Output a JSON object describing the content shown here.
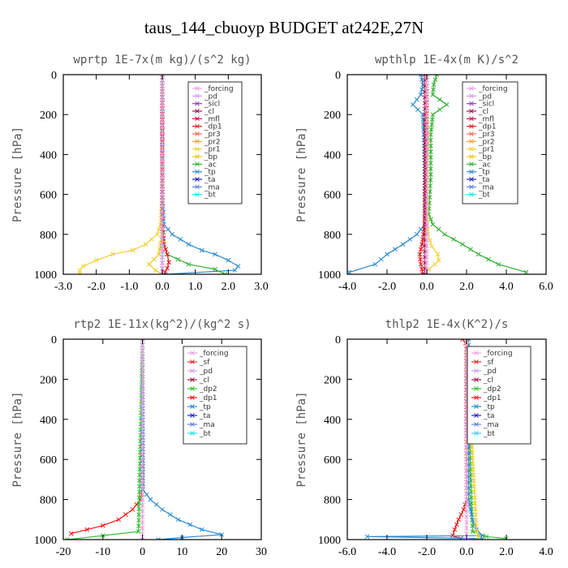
{
  "figure_title": "taus_144_cbuoyp  BUDGET at242E,27N",
  "colors": {
    "_forcing": "#e8a4e0",
    "_pd": "#c8a0e8",
    "_sicl": "#8a40c8",
    "_cl": "#a01850",
    "_mfl": "#c0104a",
    "_dp1": "#e81818",
    "_pr3": "#f07050",
    "_pr2": "#e8a030",
    "_pr1": "#f0d030",
    "_bp": "#e8c818",
    "_ac": "#30b030",
    "_tp": "#2a8ad0",
    "_ta": "#2020d0",
    "_ma": "#6080d8",
    "_bt": "#20e0e8",
    "_sf": "#e03030",
    "_dp2": "#30c030",
    "black": "#000000"
  },
  "chart_data": [
    {
      "type": "line",
      "title": "wprtp  1E-7x(m kg)/(s^2 kg)",
      "ylabel": "Pressure [hPa]",
      "xlim": [
        -3.0,
        3.0
      ],
      "ylim": [
        1000,
        0
      ],
      "xticks": [
        "-3.0",
        "-2.0",
        "-1.0",
        "0.0",
        "1.0",
        "2.0",
        "3.0"
      ],
      "yticks": [
        "0",
        "200",
        "400",
        "600",
        "800",
        "1000"
      ],
      "legend": [
        "_forcing",
        "_pd",
        "_sicl",
        "_cl",
        "_mfl",
        "_dp1",
        "_pr3",
        "_pr2",
        "_pr1",
        "_bp",
        "_ac",
        "_tp",
        "_ta",
        "_ma",
        "_bt"
      ],
      "series": [
        {
          "name": "_pr1",
          "y": [
            0,
            600,
            750,
            800,
            850,
            880,
            900,
            930,
            960,
            980,
            1000
          ],
          "x": [
            0,
            0,
            -0.05,
            -0.15,
            -0.5,
            -0.9,
            -1.5,
            -2.0,
            -2.4,
            -2.5,
            -2.5
          ]
        },
        {
          "name": "_tp",
          "y": [
            0,
            600,
            750,
            800,
            850,
            880,
            900,
            930,
            960,
            980,
            1000
          ],
          "x": [
            0,
            0,
            0.05,
            0.3,
            0.8,
            1.2,
            1.6,
            2.0,
            2.3,
            2.2,
            0.1
          ]
        },
        {
          "name": "_ac",
          "y": [
            0,
            800,
            850,
            900,
            950,
            975,
            1000
          ],
          "x": [
            0,
            0,
            0.05,
            0.15,
            0.8,
            1.6,
            1.9
          ]
        },
        {
          "name": "_dp1",
          "y": [
            0,
            700,
            850,
            900,
            940,
            970,
            990,
            1000
          ],
          "x": [
            0,
            0,
            0.05,
            0.15,
            0.2,
            0.15,
            0.08,
            0.05
          ]
        },
        {
          "name": "_bp",
          "y": [
            0,
            800,
            900,
            950,
            980,
            1000
          ],
          "x": [
            0,
            0,
            -0.1,
            -0.4,
            -0.2,
            0
          ]
        },
        {
          "name": "_ta",
          "y": [
            0,
            1000
          ],
          "x": [
            0,
            0
          ]
        },
        {
          "name": "_forcing",
          "y": [
            0,
            1000
          ],
          "x": [
            0,
            0
          ]
        }
      ]
    },
    {
      "type": "line",
      "title": "wpthlp  1E-4x(m K)/s^2",
      "ylabel": "Pressure [hPa]",
      "xlim": [
        -4.0,
        6.0
      ],
      "ylim": [
        1000,
        0
      ],
      "xticks": [
        "-4.0",
        "-2.0",
        "0.0",
        "2.0",
        "4.0",
        "6.0"
      ],
      "yticks": [
        "0",
        "200",
        "400",
        "600",
        "800",
        "1000"
      ],
      "legend": [
        "_forcing",
        "_pd",
        "_sicl",
        "_cl",
        "_mfl",
        "_dp1",
        "_pr3",
        "_pr2",
        "_pr1",
        "_bp",
        "_ac",
        "_tp",
        "_ta",
        "_ma",
        "_bt"
      ],
      "series": [
        {
          "name": "_ac",
          "y": [
            0,
            50,
            100,
            150,
            200,
            300,
            500,
            700,
            750,
            800,
            850,
            900,
            950,
            990
          ],
          "x": [
            0.5,
            0.35,
            0.3,
            1.0,
            0.3,
            0.2,
            0.2,
            0.1,
            0.3,
            0.9,
            1.8,
            2.6,
            3.6,
            5.0
          ]
        },
        {
          "name": "_tp",
          "y": [
            0,
            50,
            100,
            150,
            200,
            300,
            500,
            750,
            800,
            850,
            900,
            950,
            990
          ],
          "x": [
            -0.3,
            -0.2,
            -0.3,
            -0.7,
            -0.2,
            -0.15,
            -0.1,
            -0.1,
            -0.5,
            -1.2,
            -2.0,
            -2.6,
            -3.9
          ]
        },
        {
          "name": "_pr1",
          "y": [
            0,
            700,
            800,
            860,
            900,
            930,
            950,
            975
          ],
          "x": [
            0,
            0,
            0.05,
            0.25,
            0.55,
            0.6,
            0.4,
            0.1
          ]
        },
        {
          "name": "_dp1",
          "y": [
            0,
            500,
            750,
            850,
            900,
            950,
            1000
          ],
          "x": [
            0,
            -0.05,
            -0.1,
            -0.25,
            -0.35,
            -0.3,
            -0.2
          ]
        },
        {
          "name": "_cl",
          "y": [
            0,
            1000
          ],
          "x": [
            -0.1,
            -0.1
          ]
        },
        {
          "name": "_forcing",
          "y": [
            0,
            1000
          ],
          "x": [
            0,
            0
          ]
        }
      ]
    },
    {
      "type": "line",
      "title": "rtp2  1E-11x(kg^2)/(kg^2 s)",
      "ylabel": "Pressure [hPa]",
      "xlim": [
        -20,
        30
      ],
      "ylim": [
        1000,
        0
      ],
      "xticks": [
        "-20",
        "-10",
        "0",
        "10",
        "20",
        "30"
      ],
      "yticks": [
        "0",
        "200",
        "400",
        "600",
        "800",
        "1000"
      ],
      "legend": [
        "_forcing",
        "_sf",
        "_pd",
        "_cl",
        "_dp2",
        "_dp1",
        "_tp",
        "_ta",
        "_ma",
        "_bt"
      ],
      "series": [
        {
          "name": "_dp1",
          "y": [
            0,
            750,
            800,
            850,
            900,
            930,
            950,
            970
          ],
          "x": [
            0,
            0,
            -0.5,
            -2.5,
            -6,
            -10,
            -14,
            -18
          ]
        },
        {
          "name": "_dp2",
          "y": [
            0,
            960,
            980,
            1000
          ],
          "x": [
            0,
            -1,
            -10,
            -19
          ]
        },
        {
          "name": "_tp",
          "y": [
            0,
            750,
            800,
            850,
            900,
            950,
            975,
            990,
            1000
          ],
          "x": [
            0,
            0.1,
            2,
            5,
            9,
            15,
            20,
            10,
            4
          ]
        },
        {
          "name": "_forcing",
          "y": [
            0,
            1000
          ],
          "x": [
            0,
            0
          ]
        }
      ]
    },
    {
      "type": "line",
      "title": "thlp2  1E-4x(K^2)/s",
      "ylabel": "Pressure [hPa]",
      "xlim": [
        -6.0,
        4.0
      ],
      "ylim": [
        1000,
        0
      ],
      "xticks": [
        "-6.0",
        "-4.0",
        "-2.0",
        "0.0",
        "2.0",
        "4.0"
      ],
      "yticks": [
        "0",
        "200",
        "400",
        "600",
        "800",
        "1000"
      ],
      "legend": [
        "_forcing",
        "_sf",
        "_pd",
        "_cl",
        "_dp2",
        "_dp1",
        "_tp",
        "_ta",
        "_ma",
        "_bt"
      ],
      "series": [
        {
          "name": "_dp1",
          "y": [
            0,
            20,
            50,
            800,
            850,
            900,
            950,
            980,
            995
          ],
          "x": [
            -0.2,
            -0.05,
            0,
            0,
            -0.15,
            -0.4,
            -0.6,
            -0.7,
            -0.3
          ]
        },
        {
          "name": "_dp2",
          "y": [
            0,
            960,
            985,
            995
          ],
          "x": [
            0,
            0.3,
            1.0,
            2.0
          ]
        },
        {
          "name": "_tp",
          "y": [
            0,
            800,
            900,
            950,
            980,
            985,
            995
          ],
          "x": [
            0.1,
            0.1,
            0.3,
            0.5,
            0.8,
            -5.0,
            0.8
          ]
        },
        {
          "name": "_pr1",
          "y": [
            0,
            960,
            990
          ],
          "x": [
            0,
            0.5,
            0.6
          ]
        },
        {
          "name": "_forcing",
          "y": [
            0,
            1000
          ],
          "x": [
            0,
            0
          ]
        }
      ]
    }
  ]
}
